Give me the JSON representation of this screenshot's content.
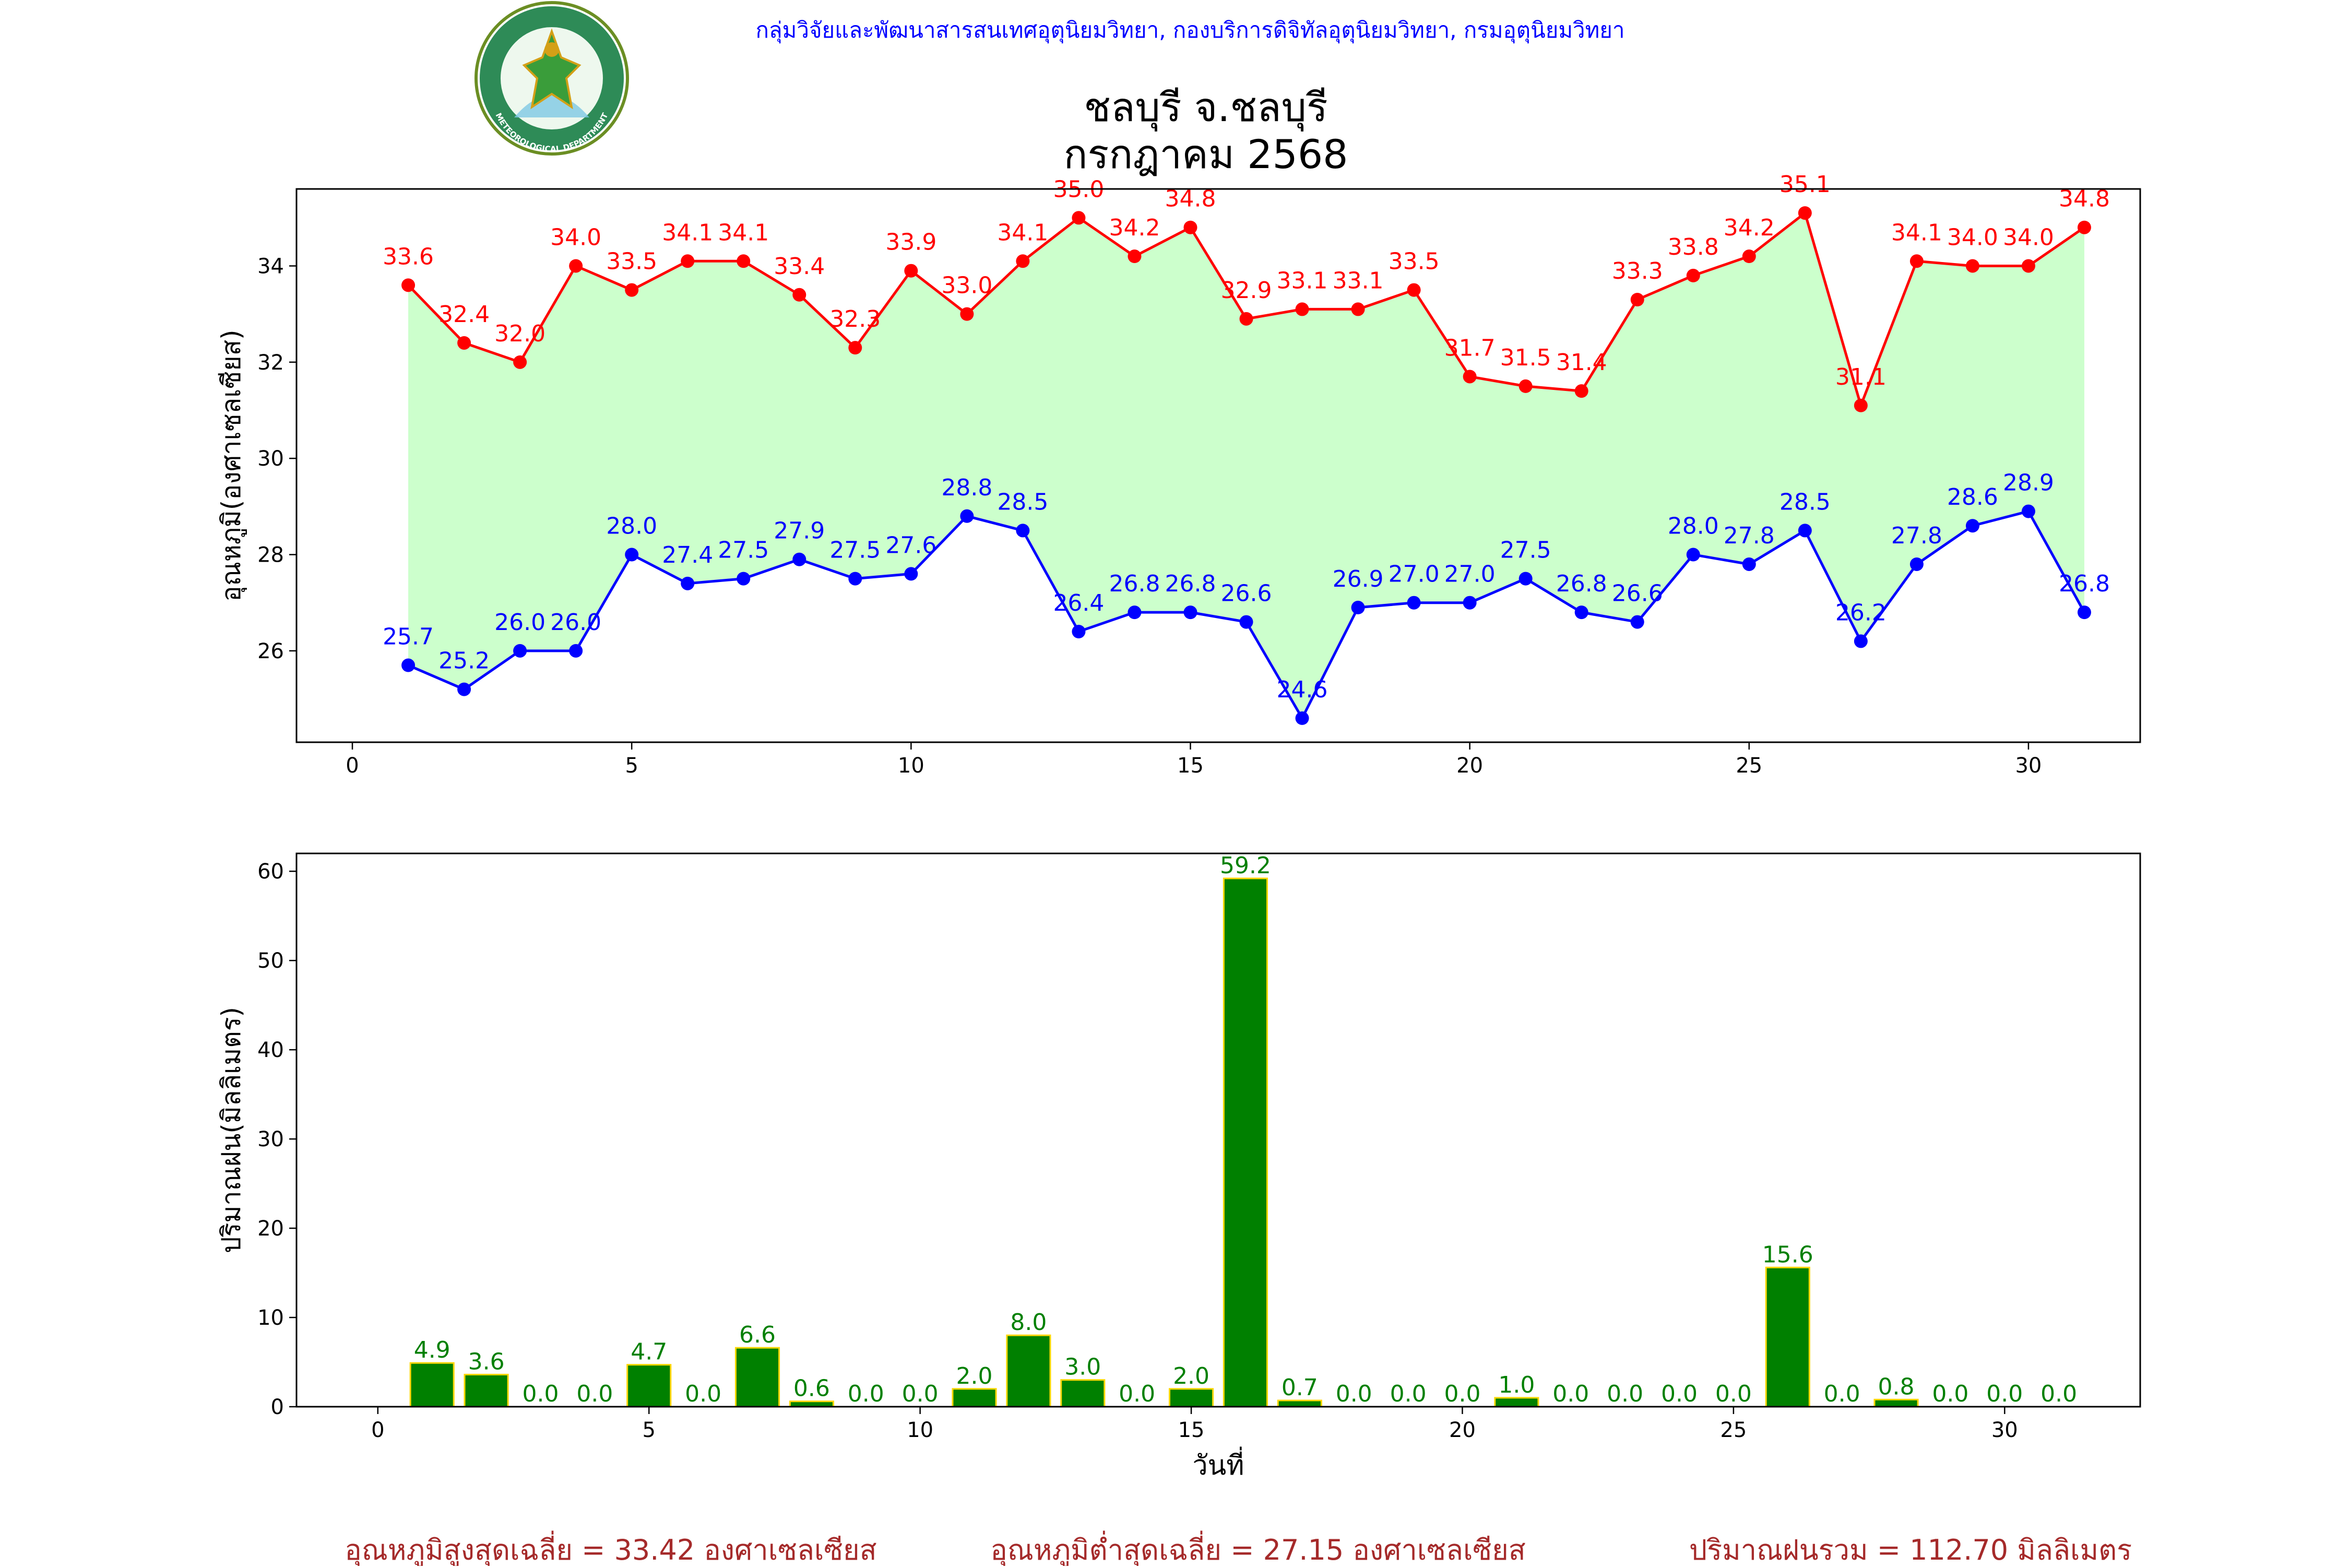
{
  "header": {
    "agency": "กลุ่มวิจัยและพัฒนาสารสนเทศอุตุนิยมวิทยา, กองบริการดิจิทัลอุตุนิยมวิทยา, กรมอุตุนิยมวิทยา",
    "title_station": "ชลบุรี จ.ชลบุรี",
    "title_period": "กรกฎาคม 2568",
    "logo_top_text": "กรมอุตุนิยมวิทยา",
    "logo_bottom_text": "METEOROLOGICAL DEPARTMENT"
  },
  "colors": {
    "max_line": "#ff0000",
    "min_line": "#0000ff",
    "fill": "#ccffcc",
    "bar_fill": "#008000",
    "bar_edge": "#ffd700",
    "bar_label": "#008000",
    "summary": "#a52a2a",
    "agency": "#0000ff"
  },
  "chart_data": [
    {
      "type": "line",
      "ylabel": "อุณหภูมิ(องศาเซลเซียส)",
      "xlabel": "",
      "xlim": [
        -1,
        32
      ],
      "ylim": [
        24.1,
        35.6
      ],
      "xticks": [
        0,
        5,
        10,
        15,
        20,
        25,
        30
      ],
      "yticks": [
        26,
        28,
        30,
        32,
        34
      ],
      "x": [
        1,
        2,
        3,
        4,
        5,
        6,
        7,
        8,
        9,
        10,
        11,
        12,
        13,
        14,
        15,
        16,
        17,
        18,
        19,
        20,
        21,
        22,
        23,
        24,
        25,
        26,
        27,
        28,
        29,
        30,
        31
      ],
      "series": [
        {
          "key": "max",
          "values": [
            33.6,
            32.4,
            32.0,
            34.0,
            33.5,
            34.1,
            34.1,
            33.4,
            32.3,
            33.9,
            33.0,
            34.1,
            35.0,
            34.2,
            34.8,
            32.9,
            33.1,
            33.1,
            33.5,
            31.7,
            31.5,
            31.4,
            33.3,
            33.8,
            34.2,
            35.1,
            31.1,
            34.1,
            34.0,
            34.0,
            34.8
          ]
        },
        {
          "key": "min",
          "values": [
            25.7,
            25.2,
            26.0,
            26.0,
            28.0,
            27.4,
            27.5,
            27.9,
            27.5,
            27.6,
            28.8,
            28.5,
            26.4,
            26.8,
            26.8,
            26.6,
            24.6,
            26.9,
            27.0,
            27.0,
            27.5,
            26.8,
            26.6,
            28.0,
            27.8,
            28.5,
            26.2,
            27.8,
            28.6,
            28.9,
            26.8
          ]
        }
      ]
    },
    {
      "type": "bar",
      "ylabel": "ปริมาณฝน(มิลลิเมตร)",
      "xlabel": "วันที่",
      "xlim": [
        -1.5,
        32.5
      ],
      "ylim": [
        0,
        62
      ],
      "xticks": [
        0,
        5,
        10,
        15,
        20,
        25,
        30
      ],
      "yticks": [
        0,
        10,
        20,
        30,
        40,
        50,
        60
      ],
      "x": [
        1,
        2,
        3,
        4,
        5,
        6,
        7,
        8,
        9,
        10,
        11,
        12,
        13,
        14,
        15,
        16,
        17,
        18,
        19,
        20,
        21,
        22,
        23,
        24,
        25,
        26,
        27,
        28,
        29,
        30,
        31
      ],
      "values": [
        4.9,
        3.6,
        0.0,
        0.0,
        4.7,
        0.0,
        6.6,
        0.6,
        0.0,
        0.0,
        2.0,
        8.0,
        3.0,
        0.0,
        2.0,
        59.2,
        0.7,
        0.0,
        0.0,
        0.0,
        1.0,
        0.0,
        0.0,
        0.0,
        0.0,
        15.6,
        0.0,
        0.8,
        0.0,
        0.0,
        0.0
      ]
    }
  ],
  "summary": {
    "avg_max": "อุณหภูมิสูงสุดเฉลี่ย = 33.42 องศาเซลเซียส",
    "avg_min": "อุณหภูมิต่ำสุดเฉลี่ย = 27.15 องศาเซลเซียส",
    "total_rain": "ปริมาณฝนรวม = 112.70 มิลลิเมตร"
  }
}
